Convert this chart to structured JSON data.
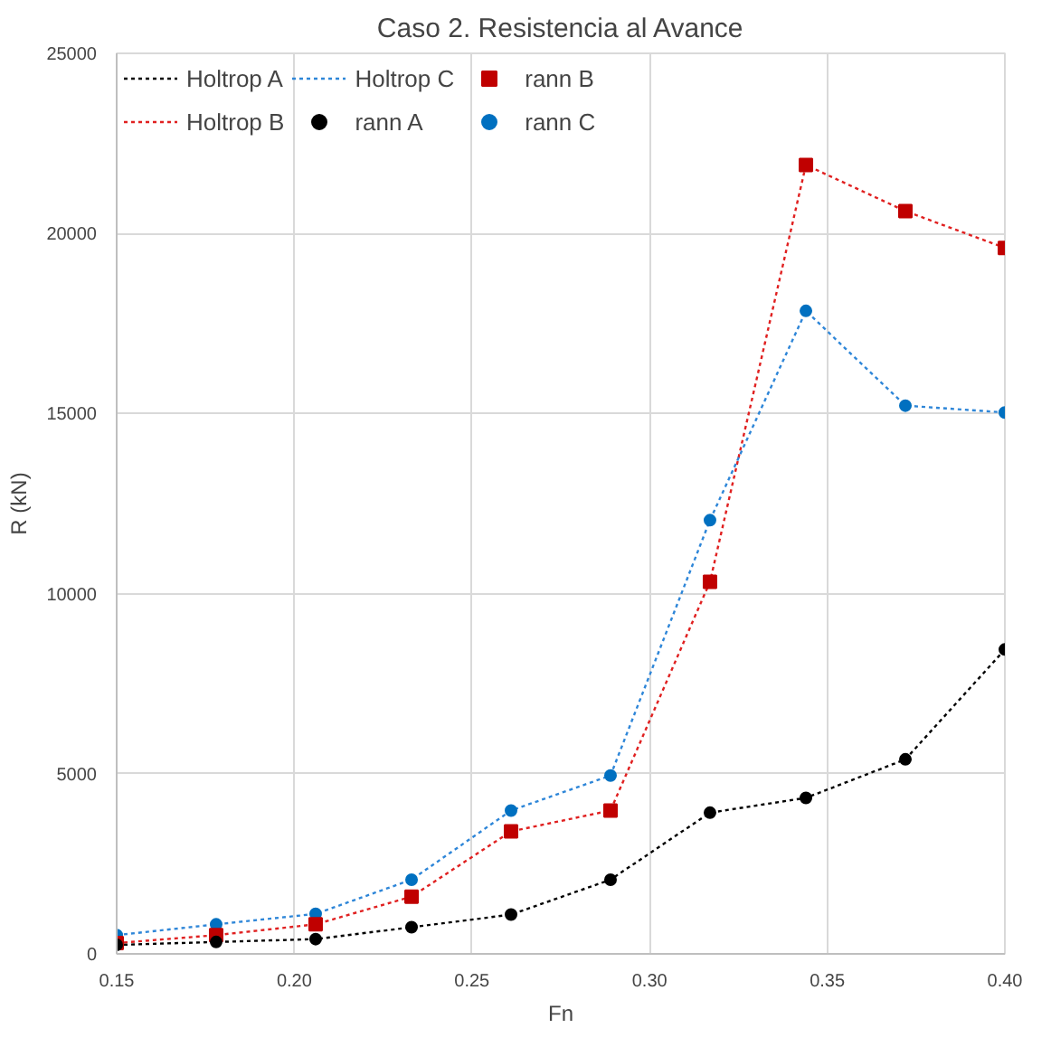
{
  "chart_data": {
    "type": "line",
    "title": "Caso 2. Resistencia al Avance",
    "xlabel": "Fn",
    "ylabel": "R (kN)",
    "x": [
      0.15,
      0.178,
      0.206,
      0.233,
      0.261,
      0.289,
      0.317,
      0.344,
      0.372,
      0.4
    ],
    "series": [
      {
        "name": "Holtrop A",
        "type": "line",
        "color": "#000000",
        "line_style": "dotted",
        "marker": "none",
        "values": [
          250,
          330,
          410,
          740,
          1090,
          2060,
          3920,
          4330,
          5400,
          8450
        ]
      },
      {
        "name": "Holtrop B",
        "type": "line",
        "color": "#e02020",
        "line_style": "dotted",
        "marker": "none",
        "values": [
          300,
          520,
          820,
          1590,
          3400,
          3980,
          10330,
          21900,
          20620,
          19600
        ]
      },
      {
        "name": "Holtrop C",
        "type": "line",
        "color": "#2e86d8",
        "line_style": "dotted",
        "marker": "none",
        "values": [
          520,
          820,
          1110,
          2060,
          3980,
          4950,
          12040,
          17850,
          15220,
          15030
        ]
      },
      {
        "name": "rann A",
        "type": "scatter",
        "color": "#000000",
        "marker": "circle",
        "values": [
          250,
          330,
          410,
          740,
          1090,
          2060,
          3920,
          4330,
          5400,
          8450
        ]
      },
      {
        "name": "rann B",
        "type": "scatter",
        "color": "#c00000",
        "marker": "square",
        "values": [
          300,
          520,
          820,
          1590,
          3400,
          3980,
          10330,
          21900,
          20620,
          19600
        ]
      },
      {
        "name": "rann C",
        "type": "scatter",
        "color": "#0070c0",
        "marker": "circle",
        "values": [
          520,
          820,
          1110,
          2060,
          3980,
          4950,
          12040,
          17850,
          15220,
          15030
        ]
      }
    ],
    "xlim": [
      0.15,
      0.4
    ],
    "xticks": [
      0.15,
      {
        "value": 0.2,
        "label": "0.20"
      },
      0.25,
      {
        "value": 0.3,
        "label": "0.30"
      },
      0.35,
      {
        "value": 0.4,
        "label": "0.40"
      }
    ],
    "ylim": [
      0,
      25000
    ],
    "yticks": [
      0,
      5000,
      10000,
      15000,
      20000,
      25000
    ],
    "grid": true,
    "legend": "top"
  }
}
